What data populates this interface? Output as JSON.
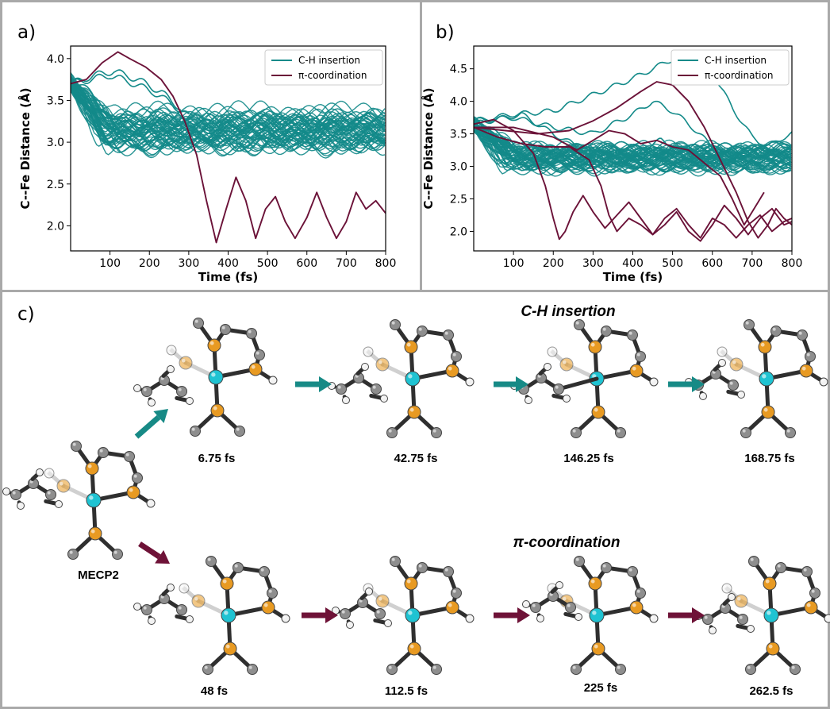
{
  "panels": {
    "a": "a)",
    "b": "b)",
    "c": "c)"
  },
  "colors": {
    "ch_insertion": "#138A89",
    "pi_coordination": "#6B1238",
    "arrow_teal": "#178A86",
    "arrow_maroon": "#6E1237",
    "fe": "#1FC3D2",
    "p": "#E89A22",
    "c": "#8E8E8E",
    "h": "#F2F2F2"
  },
  "chart_data": [
    {
      "type": "line",
      "xlabel": "Time (fs)",
      "ylabel": "C--Fe Distance (Å)",
      "xlim": [
        0,
        800
      ],
      "ylim": [
        1.7,
        4.15
      ],
      "xticks": [
        "100",
        "200",
        "300",
        "400",
        "500",
        "600",
        "700",
        "800"
      ],
      "yticks": [
        "2.0",
        "2.5",
        "3.0",
        "3.5",
        "4.0"
      ],
      "legend": {
        "position": "top-right",
        "entries": [
          "C-H insertion",
          "π-coordination"
        ]
      },
      "series": [
        {
          "name": "C-H insertion",
          "band": {
            "start": 3.72,
            "plateau_low": 2.85,
            "plateau_high": 3.45
          },
          "excursions": [
            {
              "x": [
                0,
                60,
                110,
                170,
                230,
                280
              ],
              "y": [
                3.7,
                3.8,
                3.85,
                3.75,
                3.6,
                3.4
              ]
            },
            {
              "x": [
                0,
                50,
                100,
                150,
                210,
                260,
                300
              ],
              "y": [
                3.7,
                3.75,
                3.8,
                3.72,
                3.6,
                3.45,
                3.3
              ]
            }
          ]
        },
        {
          "name": "π-coordination",
          "x": [
            0,
            40,
            80,
            120,
            150,
            190,
            230,
            260,
            290,
            320,
            345,
            370,
            395,
            420,
            445,
            470,
            495,
            520,
            545,
            570,
            600,
            625,
            650,
            675,
            700,
            725,
            750,
            775,
            800
          ],
          "y": [
            3.7,
            3.75,
            3.95,
            4.08,
            4.0,
            3.9,
            3.75,
            3.55,
            3.25,
            2.85,
            2.3,
            1.8,
            2.2,
            2.58,
            2.3,
            1.85,
            2.2,
            2.35,
            2.05,
            1.85,
            2.1,
            2.4,
            2.1,
            1.85,
            2.05,
            2.4,
            2.2,
            2.3,
            2.15
          ]
        }
      ]
    },
    {
      "type": "line",
      "xlabel": "Time (fs)",
      "ylabel": "C--Fe Distance (Å)",
      "xlim": [
        0,
        800
      ],
      "ylim": [
        1.7,
        4.85
      ],
      "xticks": [
        "100",
        "200",
        "300",
        "400",
        "500",
        "600",
        "700",
        "800"
      ],
      "yticks": [
        "2.0",
        "2.5",
        "3.0",
        "3.5",
        "4.0",
        "4.5"
      ],
      "legend": {
        "position": "top-right",
        "entries": [
          "C-H insertion",
          "π-coordination"
        ]
      },
      "series": [
        {
          "name": "C-H insertion",
          "band": {
            "start": 3.65,
            "plateau_low": 2.9,
            "plateau_high": 3.35
          },
          "excursions": [
            {
              "x": [
                0,
                100,
                200,
                300,
                400,
                500,
                560,
                600,
                650,
                700,
                740,
                780,
                800
              ],
              "y": [
                3.7,
                3.8,
                3.85,
                4.1,
                4.35,
                4.65,
                4.75,
                4.45,
                3.9,
                3.45,
                3.3,
                3.45,
                3.5
              ]
            },
            {
              "x": [
                0,
                100,
                200,
                300,
                400,
                450,
                500,
                550,
                600,
                640
              ],
              "y": [
                3.7,
                3.75,
                3.6,
                3.5,
                3.8,
                4.0,
                3.85,
                3.6,
                3.3,
                3.1
              ]
            },
            {
              "x": [
                0,
                120,
                200,
                280,
                340,
                400,
                470,
                540,
                600
              ],
              "y": [
                3.65,
                3.8,
                3.5,
                3.25,
                3.1,
                3.2,
                3.4,
                3.2,
                3.05
              ]
            }
          ]
        },
        {
          "name": "π-coordination",
          "lines": [
            {
              "x": [
                0,
                50,
                100,
                150,
                180,
                200,
                215,
                230,
                250,
                275,
                300,
                330,
                360,
                390,
                420,
                450,
                480,
                510,
                540,
                570,
                600,
                630,
                660,
                690,
                720,
                750,
                780,
                800
              ],
              "y": [
                3.65,
                3.72,
                3.55,
                3.2,
                2.7,
                2.2,
                1.88,
                2.0,
                2.3,
                2.55,
                2.3,
                2.05,
                2.25,
                2.45,
                2.2,
                1.95,
                2.1,
                2.3,
                2.0,
                1.85,
                2.1,
                2.4,
                2.2,
                1.95,
                2.2,
                2.35,
                2.1,
                2.15
              ]
            },
            {
              "x": [
                0,
                60,
                120,
                180,
                240,
                290,
                320,
                340,
                360,
                390,
                420,
                450,
                480,
                510,
                540,
                570,
                600,
                630,
                660,
                690,
                720,
                750,
                780,
                800
              ],
              "y": [
                3.6,
                3.45,
                3.35,
                3.3,
                3.3,
                3.1,
                2.7,
                2.25,
                2.0,
                2.2,
                2.1,
                1.95,
                2.2,
                2.35,
                2.1,
                1.9,
                2.2,
                2.1,
                1.9,
                2.1,
                2.25,
                2.0,
                2.15,
                2.2
              ]
            },
            {
              "x": [
                0,
                80,
                160,
                240,
                300,
                360,
                420,
                460,
                500,
                540,
                580,
                620,
                660,
                690,
                715,
                740,
                760,
                780,
                800
              ],
              "y": [
                3.6,
                3.55,
                3.5,
                3.55,
                3.7,
                3.9,
                4.15,
                4.3,
                4.25,
                4.0,
                3.6,
                3.1,
                2.6,
                2.15,
                1.9,
                2.1,
                2.35,
                2.2,
                2.1
              ]
            },
            {
              "x": [
                0,
                100,
                200,
                260,
                300,
                340,
                380,
                420,
                460,
                500,
                540,
                580,
                620,
                650,
                680,
                700,
                730
              ],
              "y": [
                3.6,
                3.6,
                3.45,
                3.25,
                3.4,
                3.55,
                3.5,
                3.35,
                3.4,
                3.3,
                3.25,
                3.05,
                2.85,
                2.5,
                2.1,
                2.3,
                2.6
              ]
            }
          ]
        }
      ]
    }
  ],
  "scheme": {
    "top_title": "C-H insertion",
    "bottom_title": "π-coordination",
    "start_label": "MECP2",
    "top_labels": [
      "6.75 fs",
      "42.75 fs",
      "146.25 fs",
      "168.75 fs"
    ],
    "bottom_labels": [
      "48 fs",
      "112.5 fs",
      "225 fs",
      "262.5 fs"
    ]
  }
}
